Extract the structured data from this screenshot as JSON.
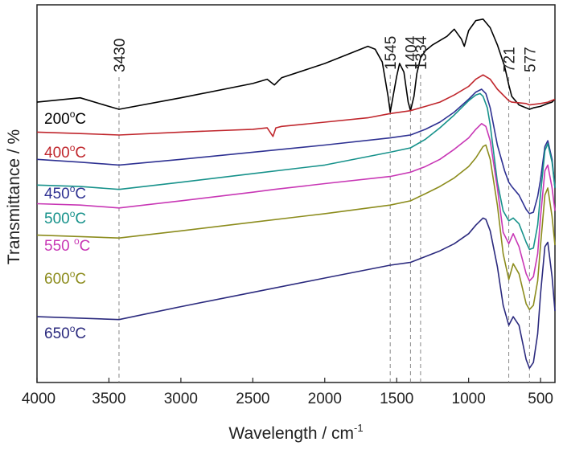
{
  "chart_data": {
    "type": "line",
    "xlabel_main": "Wavelength / cm",
    "xlabel_sup": "-1",
    "ylabel": "Transmittance / %",
    "x_reversed": true,
    "xlim": [
      4000,
      400
    ],
    "x_ticks": [
      4000,
      3500,
      3000,
      2500,
      2000,
      1500,
      1000,
      500
    ],
    "y_ticks_shown": false,
    "grid": false,
    "reference_peaks": [
      3430,
      1545,
      1404,
      1334,
      721,
      577
    ],
    "series": [
      {
        "name": "200°C",
        "label_main": "200",
        "label_sup": "o",
        "label_unit": "C",
        "color": "#000000",
        "x": [
          4000,
          3700,
          3500,
          3430,
          3000,
          2500,
          2400,
          2350,
          2300,
          2000,
          1800,
          1700,
          1650,
          1600,
          1560,
          1545,
          1500,
          1480,
          1450,
          1420,
          1404,
          1380,
          1360,
          1334,
          1300,
          1250,
          1150,
          1100,
          1050,
          1030,
          1000,
          950,
          900,
          850,
          800,
          750,
          721,
          700,
          650,
          600,
          577,
          550,
          500,
          450,
          420,
          400
        ],
        "y": [
          58.0,
          59.5,
          56.5,
          55.5,
          59.5,
          64.5,
          66.0,
          64.0,
          66.5,
          71.5,
          75.5,
          77.5,
          76.5,
          72.0,
          60.0,
          54.5,
          67.0,
          71.5,
          68.5,
          58.0,
          55.0,
          60.0,
          68.0,
          73.5,
          76.0,
          78.0,
          81.0,
          83.5,
          80.0,
          77.5,
          83.0,
          86.5,
          87.0,
          84.0,
          78.0,
          70.5,
          64.0,
          60.0,
          57.0,
          56.0,
          55.5,
          56.0,
          56.5,
          57.5,
          58.0,
          59.0
        ]
      },
      {
        "name": "400°C",
        "label_main": "400",
        "label_sup": "o",
        "label_unit": "C",
        "color": "#c0272d",
        "x": [
          4000,
          3700,
          3430,
          3000,
          2500,
          2400,
          2360,
          2340,
          2300,
          2000,
          1700,
          1545,
          1404,
          1300,
          1200,
          1100,
          1000,
          950,
          900,
          850,
          800,
          721,
          700,
          600,
          577,
          500,
          450,
          400
        ],
        "y": [
          47.5,
          47.0,
          46.5,
          47.5,
          48.5,
          49.0,
          46.0,
          49.0,
          49.5,
          51.0,
          52.5,
          54.0,
          55.0,
          56.5,
          58.0,
          60.5,
          63.5,
          66.0,
          67.5,
          66.0,
          62.5,
          58.5,
          58.0,
          57.5,
          57.0,
          57.5,
          58.0,
          59.0
        ]
      },
      {
        "name": "450°C",
        "label_main": "450",
        "label_sup": "o",
        "label_unit": "C",
        "color": "#2e3192",
        "x": [
          4000,
          3700,
          3430,
          3000,
          2500,
          2000,
          1545,
          1404,
          1300,
          1200,
          1100,
          1000,
          950,
          910,
          880,
          850,
          800,
          750,
          721,
          700,
          650,
          600,
          577,
          550,
          520,
          500,
          470,
          450,
          420,
          400
        ],
        "y": [
          38.0,
          37.0,
          36.0,
          38.0,
          40.5,
          43.0,
          45.5,
          46.5,
          48.5,
          51.0,
          54.5,
          59.0,
          61.5,
          62.5,
          61.0,
          56.0,
          43.0,
          34.0,
          30.0,
          28.5,
          25.5,
          20.5,
          19.0,
          19.5,
          25.0,
          31.0,
          42.5,
          44.5,
          38.0,
          28.0
        ]
      },
      {
        "name": "500°C",
        "label_main": "500",
        "label_sup": "o",
        "label_unit": "C",
        "color": "#17928b",
        "x": [
          4000,
          3700,
          3430,
          3000,
          2500,
          2000,
          1545,
          1404,
          1300,
          1200,
          1100,
          1000,
          950,
          920,
          900,
          870,
          850,
          800,
          760,
          721,
          690,
          650,
          600,
          577,
          550,
          520,
          500,
          470,
          450,
          420,
          400
        ],
        "y": [
          29.0,
          28.5,
          27.5,
          30.0,
          33.0,
          36.0,
          40.5,
          42.0,
          45.0,
          49.0,
          53.5,
          58.5,
          60.5,
          61.0,
          60.0,
          56.0,
          50.0,
          30.0,
          20.0,
          16.5,
          17.5,
          15.5,
          9.0,
          6.5,
          7.0,
          15.0,
          26.0,
          41.0,
          43.5,
          37.0,
          28.0
        ]
      },
      {
        "name": "550 °C",
        "label_main": "550 ",
        "label_sup": "o",
        "label_unit": "C",
        "color": "#c837b5",
        "x": [
          4000,
          3700,
          3430,
          3000,
          2500,
          2350,
          2000,
          1545,
          1404,
          1300,
          1200,
          1100,
          1000,
          950,
          910,
          880,
          850,
          800,
          760,
          721,
          690,
          650,
          600,
          577,
          550,
          520,
          500,
          470,
          450,
          420,
          400
        ],
        "y": [
          22.5,
          22.0,
          21.0,
          23.5,
          26.5,
          27.5,
          29.5,
          32.0,
          33.5,
          35.5,
          38.0,
          41.5,
          45.5,
          48.5,
          50.5,
          49.5,
          44.5,
          28.0,
          12.5,
          8.5,
          12.0,
          7.5,
          -2.0,
          -4.5,
          -3.0,
          5.0,
          18.0,
          34.0,
          36.0,
          28.0,
          20.0
        ]
      },
      {
        "name": "600°C",
        "label_main": "600",
        "label_sup": "o",
        "label_unit": "C",
        "color": "#8c8c1d",
        "x": [
          4000,
          3700,
          3430,
          3000,
          2500,
          2000,
          1545,
          1404,
          1300,
          1200,
          1100,
          1000,
          950,
          900,
          880,
          850,
          800,
          760,
          721,
          690,
          650,
          600,
          577,
          550,
          520,
          500,
          470,
          450,
          420,
          400
        ],
        "y": [
          11.5,
          11.0,
          10.5,
          13.0,
          16.0,
          19.0,
          22.0,
          23.5,
          26.0,
          28.5,
          31.5,
          35.5,
          38.5,
          42.5,
          43.0,
          38.0,
          22.0,
          5.0,
          -4.0,
          1.5,
          -2.0,
          -12.5,
          -14.5,
          -13.0,
          -4.5,
          8.0,
          25.5,
          28.0,
          18.0,
          8.0
        ]
      },
      {
        "name": "650°C",
        "label_main": "650",
        "label_sup": "o",
        "label_unit": "C",
        "color": "#2b2a7e",
        "x": [
          4000,
          3700,
          3430,
          3000,
          2500,
          2000,
          1545,
          1404,
          1300,
          1200,
          1100,
          1000,
          950,
          900,
          880,
          850,
          800,
          760,
          721,
          690,
          650,
          600,
          577,
          550,
          520,
          500,
          470,
          450,
          420,
          400
        ],
        "y": [
          -17.0,
          -17.5,
          -18.0,
          -13.5,
          -8.5,
          -3.5,
          1.0,
          2.0,
          4.0,
          6.0,
          8.5,
          12.0,
          15.0,
          17.5,
          17.0,
          13.0,
          0.5,
          -13.0,
          -20.0,
          -17.0,
          -20.0,
          -32.0,
          -35.0,
          -33.0,
          -23.0,
          -9.0,
          7.5,
          9.0,
          -3.0,
          -15.0
        ]
      }
    ]
  }
}
